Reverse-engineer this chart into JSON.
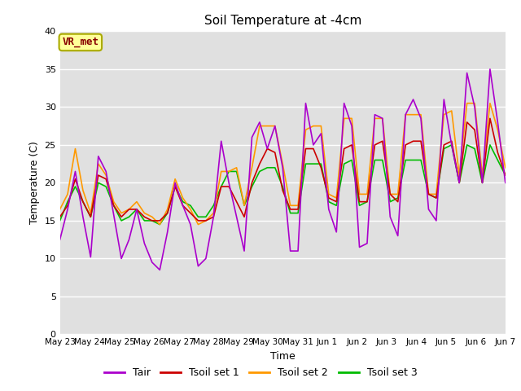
{
  "title": "Soil Temperature at -4cm",
  "xlabel": "Time",
  "ylabel": "Temperature (C)",
  "ylim": [
    0,
    40
  ],
  "yticks": [
    0,
    5,
    10,
    15,
    20,
    25,
    30,
    35,
    40
  ],
  "plot_bg_color": "#e0e0e0",
  "fig_bg_color": "#ffffff",
  "annotation_text": "VR_met",
  "annotation_facecolor": "#ffff99",
  "annotation_edgecolor": "#aaaa00",
  "annotation_textcolor": "#880000",
  "colors": {
    "Tair": "#aa00cc",
    "Tsoil1": "#cc0000",
    "Tsoil2": "#ff9900",
    "Tsoil3": "#00bb00"
  },
  "x_labels": [
    "May 23",
    "May 24",
    "May 25",
    "May 26",
    "May 27",
    "May 28",
    "May 29",
    "May 30",
    "May 31",
    "Jun 1",
    "Jun 2",
    "Jun 3",
    "Jun 4",
    "Jun 5",
    "Jun 6",
    "Jun 7"
  ],
  "x_values": [
    0,
    1,
    2,
    3,
    4,
    5,
    6,
    7,
    8,
    9,
    10,
    11,
    12,
    13,
    14,
    15
  ],
  "tair": [
    12.5,
    16.5,
    21.5,
    15.5,
    10.2,
    23.5,
    21.5,
    15.8,
    10.0,
    12.5,
    16.5,
    12.0,
    9.5,
    8.5,
    13.5,
    20.0,
    17.0,
    14.5,
    9.0,
    10.0,
    15.5,
    25.5,
    20.0,
    15.5,
    11.0,
    26.0,
    28.0,
    24.5,
    27.5,
    22.0,
    11.0,
    11.0,
    30.5,
    25.0,
    26.5,
    16.5,
    13.5,
    30.5,
    27.5,
    11.5,
    12.0,
    29.0,
    28.5,
    15.5,
    13.0,
    29.0,
    31.0,
    28.5,
    16.5,
    15.0,
    31.0,
    25.0,
    20.0,
    34.5,
    30.0,
    20.0,
    35.0,
    28.0,
    20.0
  ],
  "tsoil1": [
    15.5,
    17.0,
    20.5,
    17.5,
    15.5,
    21.0,
    20.5,
    17.0,
    15.5,
    16.5,
    16.5,
    15.5,
    15.0,
    15.0,
    16.0,
    19.5,
    17.0,
    16.0,
    15.0,
    15.0,
    15.5,
    19.5,
    19.5,
    17.5,
    15.5,
    20.0,
    22.5,
    24.5,
    24.0,
    19.0,
    16.5,
    16.5,
    24.5,
    24.5,
    22.0,
    18.0,
    17.5,
    24.5,
    25.0,
    17.5,
    17.5,
    25.0,
    25.5,
    18.5,
    17.5,
    25.0,
    25.5,
    25.5,
    18.5,
    18.0,
    25.0,
    25.5,
    20.0,
    28.0,
    27.0,
    20.0,
    28.5,
    24.0,
    21.0
  ],
  "tsoil2": [
    16.5,
    18.5,
    24.5,
    19.0,
    16.0,
    22.5,
    21.0,
    17.5,
    16.0,
    16.5,
    17.5,
    16.0,
    15.5,
    14.5,
    16.5,
    20.5,
    18.0,
    16.5,
    14.5,
    15.0,
    16.0,
    21.5,
    21.5,
    22.0,
    17.0,
    22.0,
    27.5,
    27.5,
    27.5,
    22.5,
    17.0,
    17.0,
    27.0,
    27.5,
    27.5,
    18.5,
    18.0,
    28.5,
    28.5,
    18.5,
    18.5,
    28.5,
    28.5,
    18.5,
    18.5,
    29.0,
    29.0,
    29.0,
    18.5,
    18.5,
    29.0,
    29.5,
    21.0,
    30.5,
    30.5,
    21.0,
    30.5,
    27.0,
    22.0
  ],
  "tsoil3": [
    15.0,
    17.5,
    19.5,
    17.5,
    15.5,
    20.0,
    19.5,
    17.0,
    15.0,
    15.5,
    16.5,
    15.0,
    15.0,
    14.5,
    16.0,
    19.5,
    17.5,
    17.0,
    15.5,
    15.5,
    17.0,
    19.5,
    21.5,
    21.5,
    17.0,
    19.5,
    21.5,
    22.0,
    22.0,
    19.5,
    16.0,
    16.0,
    22.5,
    22.5,
    22.5,
    17.5,
    17.0,
    22.5,
    23.0,
    17.0,
    17.5,
    23.0,
    23.0,
    17.5,
    18.0,
    23.0,
    23.0,
    23.0,
    18.5,
    18.0,
    24.5,
    25.0,
    20.0,
    25.0,
    24.5,
    20.0,
    25.0,
    23.0,
    21.0
  ]
}
